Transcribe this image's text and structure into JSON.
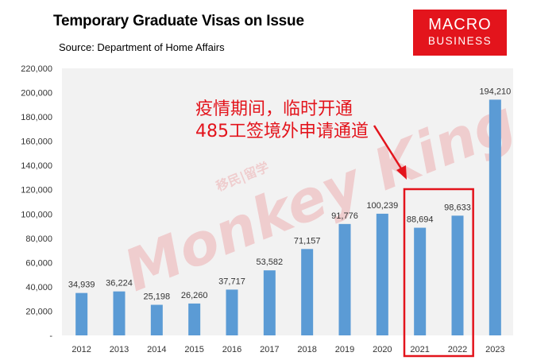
{
  "title": "Temporary Graduate Visas on Issue",
  "subtitle": "Source: Department of Home Affairs",
  "logo": {
    "line1": "MACRO",
    "line2": "BUSINESS",
    "bg_color": "#e3141c"
  },
  "watermark": {
    "text": "Monkey King",
    "sub_text": "移民|留学"
  },
  "annotation": {
    "line1": "疫情期间，临时开通",
    "line2": "485工签境外申请通道",
    "color": "#e3141c",
    "highlighted_categories": [
      "2021",
      "2022"
    ]
  },
  "chart_data": {
    "type": "bar",
    "categories": [
      "2012",
      "2013",
      "2014",
      "2015",
      "2016",
      "2017",
      "2018",
      "2019",
      "2020",
      "2021",
      "2022",
      "2023"
    ],
    "values": [
      34939,
      36224,
      25198,
      26260,
      37717,
      53582,
      71157,
      91776,
      100239,
      88694,
      98633,
      194210
    ],
    "value_labels": [
      "34,939",
      "36,224",
      "25,198",
      "26,260",
      "37,717",
      "53,582",
      "71,157",
      "91,776",
      "100,239",
      "88,694",
      "98,633",
      "194,210"
    ],
    "ylim": [
      0,
      220000
    ],
    "yticks": [
      0,
      20000,
      40000,
      60000,
      80000,
      100000,
      120000,
      140000,
      160000,
      180000,
      200000,
      220000
    ],
    "ytick_labels": [
      "-",
      "20,000",
      "40,000",
      "60,000",
      "80,000",
      "100,000",
      "120,000",
      "140,000",
      "160,000",
      "180,000",
      "200,000",
      "220,000"
    ],
    "bar_color": "#5b9bd5",
    "plot_bg_color": "#f2f2f2",
    "grid": false,
    "xlabel": "",
    "ylabel": ""
  }
}
